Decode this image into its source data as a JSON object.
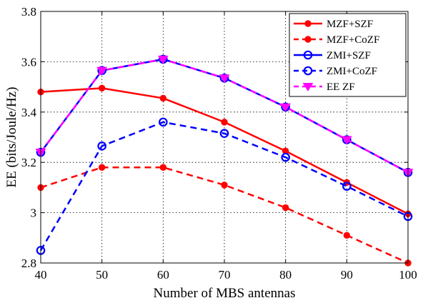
{
  "chart_data": {
    "type": "line",
    "title": "",
    "xlabel": "Number of MBS antennas",
    "ylabel": "EE (bits/Joule/Hz)",
    "x": [
      40,
      50,
      60,
      70,
      80,
      90,
      100
    ],
    "xlim": [
      40,
      100
    ],
    "ylim": [
      2.8,
      3.8
    ],
    "xticks": [
      40,
      50,
      60,
      70,
      80,
      90,
      100
    ],
    "yticks": [
      2.8,
      3.0,
      3.2,
      3.4,
      3.6,
      3.8
    ],
    "xtick_labels": [
      "40",
      "50",
      "60",
      "70",
      "80",
      "90",
      "100"
    ],
    "ytick_labels": [
      "2.8",
      "3",
      "3.2",
      "3.4",
      "3.6",
      "3.8"
    ],
    "grid": true,
    "legend_position": "top-right",
    "series": [
      {
        "name": "MZF+SZF",
        "color": "#ff0000",
        "line": "solid",
        "marker": "dot",
        "values": [
          3.48,
          3.495,
          3.455,
          3.36,
          3.245,
          3.12,
          2.995
        ]
      },
      {
        "name": "MZF+CoZF",
        "color": "#ff0000",
        "line": "dashed",
        "marker": "dot",
        "values": [
          3.1,
          3.18,
          3.18,
          3.11,
          3.02,
          2.91,
          2.8
        ]
      },
      {
        "name": "ZMI+SZF",
        "color": "#0000ff",
        "line": "solid",
        "marker": "circle",
        "values": [
          3.24,
          3.565,
          3.61,
          3.535,
          3.42,
          3.29,
          3.16
        ]
      },
      {
        "name": "ZMI+CoZF",
        "color": "#0000ff",
        "line": "dashed",
        "marker": "circle",
        "values": [
          2.85,
          3.265,
          3.36,
          3.315,
          3.22,
          3.105,
          2.985
        ]
      },
      {
        "name": "EE ZF",
        "color": "#ff00ff",
        "line": "dashed",
        "marker": "triangle-down",
        "values": [
          3.24,
          3.565,
          3.61,
          3.535,
          3.42,
          3.29,
          3.16
        ]
      }
    ]
  }
}
